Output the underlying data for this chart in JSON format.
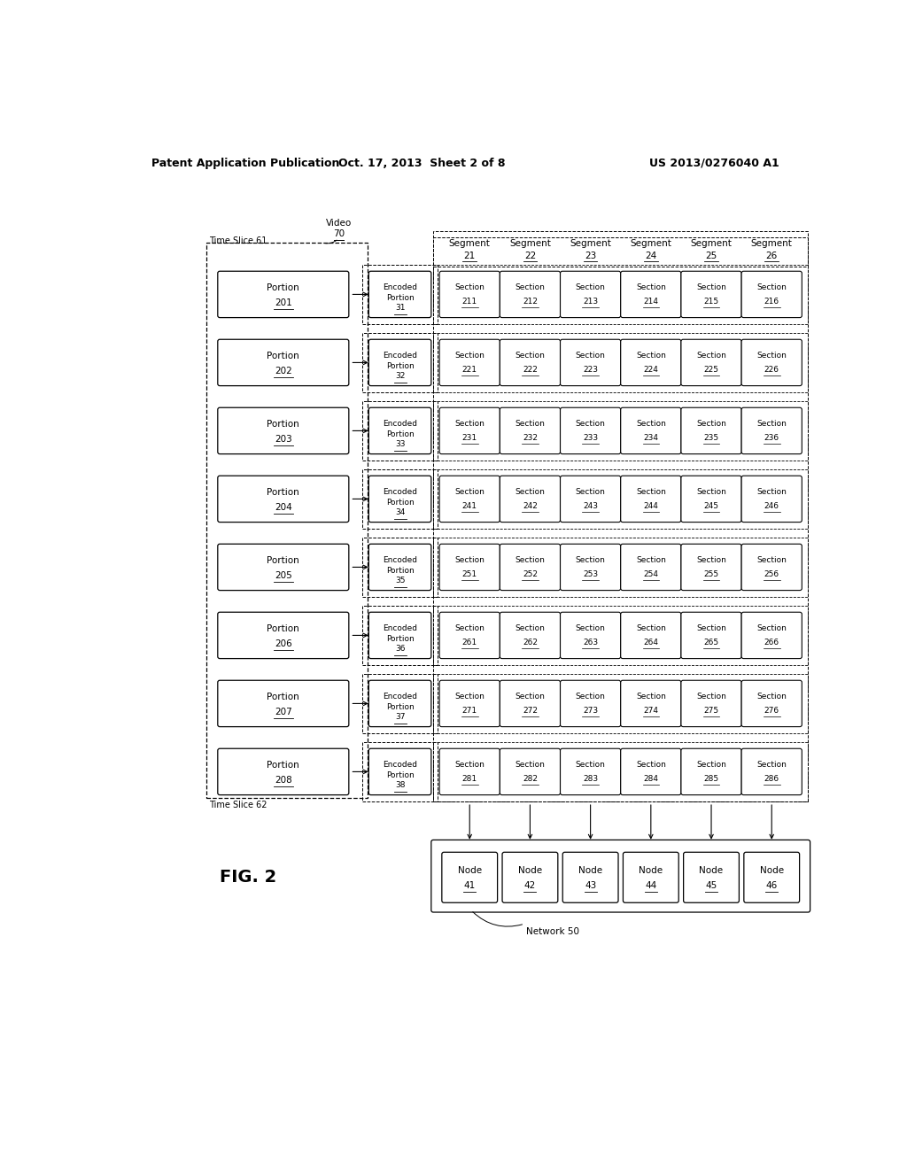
{
  "bg_color": "#ffffff",
  "header_left": "Patent Application Publication",
  "header_mid": "Oct. 17, 2013  Sheet 2 of 8",
  "header_right": "US 2013/0276040 A1",
  "fig_label": "FIG. 2",
  "video_label": "Video",
  "video_num": "70",
  "time_slice_61": "Time Slice 61",
  "time_slice_62": "Time Slice 62",
  "network_label": "Network 50",
  "portions": [
    {
      "label": "Portion",
      "num": "201"
    },
    {
      "label": "Portion",
      "num": "202"
    },
    {
      "label": "Portion",
      "num": "203"
    },
    {
      "label": "Portion",
      "num": "204"
    },
    {
      "label": "Portion",
      "num": "205"
    },
    {
      "label": "Portion",
      "num": "206"
    },
    {
      "label": "Portion",
      "num": "207"
    },
    {
      "label": "Portion",
      "num": "208"
    }
  ],
  "encoded_portions": [
    {
      "label": "Encoded\nPortion",
      "num": "31"
    },
    {
      "label": "Encoded\nPortion",
      "num": "32"
    },
    {
      "label": "Encoded\nPortion",
      "num": "33"
    },
    {
      "label": "Encoded\nPortion",
      "num": "34"
    },
    {
      "label": "Encoded\nPortion",
      "num": "35"
    },
    {
      "label": "Encoded\nPortion",
      "num": "36"
    },
    {
      "label": "Encoded\nPortion",
      "num": "37"
    },
    {
      "label": "Encoded\nPortion",
      "num": "38"
    }
  ],
  "segments": [
    {
      "label": "Segment",
      "num": "21"
    },
    {
      "label": "Segment",
      "num": "22"
    },
    {
      "label": "Segment",
      "num": "23"
    },
    {
      "label": "Segment",
      "num": "24"
    },
    {
      "label": "Segment",
      "num": "25"
    },
    {
      "label": "Segment",
      "num": "26"
    }
  ],
  "sections": [
    [
      "211",
      "212",
      "213",
      "214",
      "215",
      "216"
    ],
    [
      "221",
      "222",
      "223",
      "224",
      "225",
      "226"
    ],
    [
      "231",
      "232",
      "233",
      "234",
      "235",
      "236"
    ],
    [
      "241",
      "242",
      "243",
      "244",
      "245",
      "246"
    ],
    [
      "251",
      "252",
      "253",
      "254",
      "255",
      "256"
    ],
    [
      "261",
      "262",
      "263",
      "264",
      "265",
      "266"
    ],
    [
      "271",
      "272",
      "273",
      "274",
      "275",
      "276"
    ],
    [
      "281",
      "282",
      "283",
      "284",
      "285",
      "286"
    ]
  ],
  "nodes": [
    {
      "label": "Node",
      "num": "41"
    },
    {
      "label": "Node",
      "num": "42"
    },
    {
      "label": "Node",
      "num": "43"
    },
    {
      "label": "Node",
      "num": "44"
    },
    {
      "label": "Node",
      "num": "45"
    },
    {
      "label": "Node",
      "num": "46"
    }
  ]
}
